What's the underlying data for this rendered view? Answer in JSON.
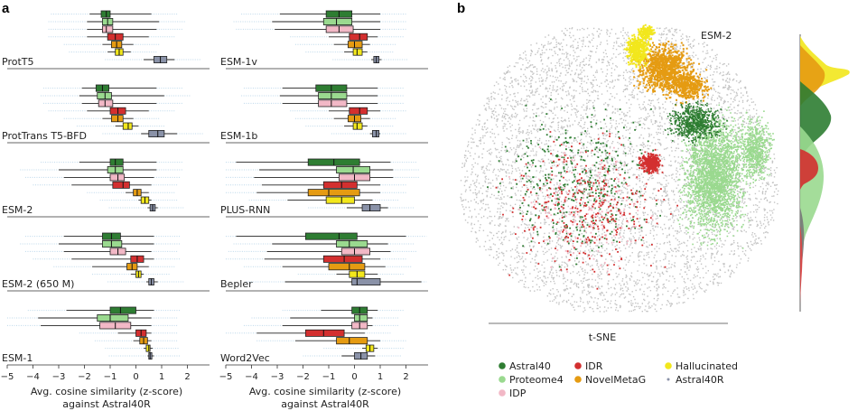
{
  "panel_a_letter": "a",
  "panel_b_letter": "b",
  "colors": {
    "Astral40": "#2e7d32",
    "Proteome4": "#9ad98f",
    "IDP": "#f2b8c6",
    "IDR": "#d32f2f",
    "NovelMetaG": "#e59b12",
    "Hallucinated": "#f2e71c",
    "Astral40R": "#8a92a8",
    "gray_points": "#c4c4c4"
  },
  "chart_data": [
    {
      "type": "box",
      "panel": "a",
      "xlabel_line1": "Avg. cosine similarity (z-score)",
      "xlabel_line2": "against Astral40R",
      "xlim": [
        -5,
        3
      ],
      "xticks": [
        "-5",
        "-4",
        "-3",
        "-2",
        "-1",
        "0",
        "1",
        "2"
      ],
      "series_order": [
        "Astral40",
        "Proteome4",
        "IDP",
        "IDR",
        "NovelMetaG",
        "Hallucinated",
        "Astral40R"
      ],
      "subplots": [
        {
          "name": "ProtT5",
          "boxes": [
            {
              "q1": -1.35,
              "med": -1.15,
              "q3": -1.0,
              "wlo": -1.8,
              "whi": 0.6
            },
            {
              "q1": -1.3,
              "med": -1.1,
              "q3": -0.9,
              "wlo": -1.9,
              "whi": 0.9
            },
            {
              "q1": -1.3,
              "med": -1.15,
              "q3": -0.9,
              "wlo": -1.9,
              "whi": 0.8
            },
            {
              "q1": -1.1,
              "med": -0.8,
              "q3": -0.5,
              "wlo": -1.9,
              "whi": 0.5
            },
            {
              "q1": -0.95,
              "med": -0.75,
              "q3": -0.55,
              "wlo": -1.3,
              "whi": -0.1
            },
            {
              "q1": -0.8,
              "med": -0.65,
              "q3": -0.5,
              "wlo": -1.1,
              "whi": -0.2
            },
            {
              "q1": 0.7,
              "med": 0.95,
              "q3": 1.2,
              "wlo": 0.3,
              "whi": 1.5
            }
          ]
        },
        {
          "name": "ProtTrans T5-BFD",
          "boxes": [
            {
              "q1": -1.55,
              "med": -1.3,
              "q3": -1.05,
              "wlo": -2.1,
              "whi": 0.8
            },
            {
              "q1": -1.5,
              "med": -1.2,
              "q3": -0.95,
              "wlo": -2.2,
              "whi": 1.1
            },
            {
              "q1": -1.45,
              "med": -1.2,
              "q3": -0.9,
              "wlo": -2.1,
              "whi": 0.8
            },
            {
              "q1": -1.0,
              "med": -0.7,
              "q3": -0.4,
              "wlo": -1.9,
              "whi": 0.5
            },
            {
              "q1": -0.95,
              "med": -0.7,
              "q3": -0.5,
              "wlo": -1.3,
              "whi": -0.1
            },
            {
              "q1": -0.5,
              "med": -0.3,
              "q3": -0.15,
              "wlo": -0.8,
              "whi": 0.1
            },
            {
              "q1": 0.5,
              "med": 0.85,
              "q3": 1.1,
              "wlo": 0.2,
              "whi": 1.6
            }
          ]
        },
        {
          "name": "ESM-2",
          "boxes": [
            {
              "q1": -1.0,
              "med": -0.8,
              "q3": -0.5,
              "wlo": -2.2,
              "whi": 0.8
            },
            {
              "q1": -1.1,
              "med": -0.8,
              "q3": -0.5,
              "wlo": -3.0,
              "whi": 0.8
            },
            {
              "q1": -1.0,
              "med": -0.7,
              "q3": -0.45,
              "wlo": -2.8,
              "whi": 0.7
            },
            {
              "q1": -0.9,
              "med": -0.5,
              "q3": -0.25,
              "wlo": -2.5,
              "whi": 0.6
            },
            {
              "q1": -0.1,
              "med": 0.05,
              "q3": 0.2,
              "wlo": -0.4,
              "whi": 0.5
            },
            {
              "q1": 0.2,
              "med": 0.35,
              "q3": 0.5,
              "wlo": 0.1,
              "whi": 0.6
            },
            {
              "q1": 0.55,
              "med": 0.65,
              "q3": 0.75,
              "wlo": 0.45,
              "whi": 0.85
            }
          ]
        },
        {
          "name": "ESM-2 (650 M)",
          "boxes": [
            {
              "q1": -1.3,
              "med": -0.95,
              "q3": -0.6,
              "wlo": -2.8,
              "whi": 0.7
            },
            {
              "q1": -1.3,
              "med": -0.95,
              "q3": -0.55,
              "wlo": -3.0,
              "whi": 0.7
            },
            {
              "q1": -1.0,
              "med": -0.7,
              "q3": -0.4,
              "wlo": -2.8,
              "whi": 0.6
            },
            {
              "q1": -0.2,
              "med": 0.05,
              "q3": 0.3,
              "wlo": -2.5,
              "whi": 0.7
            },
            {
              "q1": -0.35,
              "med": -0.15,
              "q3": 0.05,
              "wlo": -1.7,
              "whi": 0.5
            },
            {
              "q1": 0.0,
              "med": 0.1,
              "q3": 0.2,
              "wlo": -0.2,
              "whi": 0.3
            },
            {
              "q1": 0.5,
              "med": 0.6,
              "q3": 0.7,
              "wlo": 0.4,
              "whi": 0.85
            }
          ]
        },
        {
          "name": "ESM-1",
          "boxes": [
            {
              "q1": -1.0,
              "med": -0.6,
              "q3": 0.0,
              "wlo": -2.7,
              "whi": 0.7
            },
            {
              "q1": -1.5,
              "med": -1.0,
              "q3": -0.3,
              "wlo": -3.8,
              "whi": 0.6
            },
            {
              "q1": -1.4,
              "med": -0.8,
              "q3": -0.2,
              "wlo": -3.7,
              "whi": 0.6
            },
            {
              "q1": 0.0,
              "med": 0.2,
              "q3": 0.4,
              "wlo": -0.7,
              "whi": 0.6
            },
            {
              "q1": 0.15,
              "med": 0.3,
              "q3": 0.45,
              "wlo": -0.1,
              "whi": 0.6
            },
            {
              "q1": 0.4,
              "med": 0.5,
              "q3": 0.55,
              "wlo": 0.3,
              "whi": 0.65
            },
            {
              "q1": 0.5,
              "med": 0.55,
              "q3": 0.62,
              "wlo": 0.45,
              "whi": 0.7
            }
          ]
        },
        {
          "name": "ESM-1v",
          "boxes": [
            {
              "q1": -1.1,
              "med": -0.6,
              "q3": -0.1,
              "wlo": -2.9,
              "whi": 1.0
            },
            {
              "q1": -1.2,
              "med": -0.7,
              "q3": -0.1,
              "wlo": -3.2,
              "whi": 1.0
            },
            {
              "q1": -1.1,
              "med": -0.6,
              "q3": -0.05,
              "wlo": -3.1,
              "whi": 1.0
            },
            {
              "q1": -0.2,
              "med": 0.2,
              "q3": 0.5,
              "wlo": -1.0,
              "whi": 0.9
            },
            {
              "q1": -0.25,
              "med": 0.0,
              "q3": 0.3,
              "wlo": -0.8,
              "whi": 0.6
            },
            {
              "q1": -0.05,
              "med": 0.1,
              "q3": 0.3,
              "wlo": -0.4,
              "whi": 0.5
            },
            {
              "q1": 0.75,
              "med": 0.85,
              "q3": 0.95,
              "wlo": 0.65,
              "whi": 1.05
            }
          ]
        },
        {
          "name": "ESM-1b",
          "boxes": [
            {
              "q1": -1.5,
              "med": -0.9,
              "q3": -0.3,
              "wlo": -2.8,
              "whi": 0.9
            },
            {
              "q1": -1.4,
              "med": -0.9,
              "q3": -0.3,
              "wlo": -2.9,
              "whi": 0.9
            },
            {
              "q1": -1.4,
              "med": -0.9,
              "q3": -0.3,
              "wlo": -2.8,
              "whi": 0.9
            },
            {
              "q1": -0.2,
              "med": 0.2,
              "q3": 0.5,
              "wlo": -1.0,
              "whi": 1.0
            },
            {
              "q1": -0.25,
              "med": 0.0,
              "q3": 0.25,
              "wlo": -0.8,
              "whi": 0.6
            },
            {
              "q1": -0.05,
              "med": 0.1,
              "q3": 0.3,
              "wlo": -0.4,
              "whi": 0.5
            },
            {
              "q1": 0.7,
              "med": 0.85,
              "q3": 0.95,
              "wlo": 0.6,
              "whi": 1.0
            }
          ]
        },
        {
          "name": "PLUS-RNN",
          "boxes": [
            {
              "q1": -1.8,
              "med": -0.8,
              "q3": 0.2,
              "wlo": -4.6,
              "whi": 1.4
            },
            {
              "q1": -0.7,
              "med": -0.05,
              "q3": 0.6,
              "wlo": -3.7,
              "whi": 1.5
            },
            {
              "q1": -0.6,
              "med": 0.0,
              "q3": 0.6,
              "wlo": -3.9,
              "whi": 1.5
            },
            {
              "q1": -1.2,
              "med": -0.5,
              "q3": 0.1,
              "wlo": -3.6,
              "whi": 1.0
            },
            {
              "q1": -1.8,
              "med": -1.0,
              "q3": 0.2,
              "wlo": -3.8,
              "whi": 1.0
            },
            {
              "q1": -1.1,
              "med": -0.5,
              "q3": 0.0,
              "wlo": -2.6,
              "whi": 0.7
            },
            {
              "q1": 0.3,
              "med": 0.6,
              "q3": 1.0,
              "wlo": -0.3,
              "whi": 1.3
            }
          ]
        },
        {
          "name": "Bepler",
          "boxes": [
            {
              "q1": -1.9,
              "med": -0.6,
              "q3": 0.1,
              "wlo": -4.6,
              "whi": 2.0
            },
            {
              "q1": -0.7,
              "med": -0.2,
              "q3": 0.5,
              "wlo": -3.2,
              "whi": 1.3
            },
            {
              "q1": -0.5,
              "med": 0.0,
              "q3": 0.6,
              "wlo": -3.4,
              "whi": 1.4
            },
            {
              "q1": -1.2,
              "med": -0.4,
              "q3": 0.3,
              "wlo": -3.5,
              "whi": 1.0
            },
            {
              "q1": -1.0,
              "med": -0.2,
              "q3": 0.4,
              "wlo": -2.8,
              "whi": 1.2
            },
            {
              "q1": -0.2,
              "med": 0.1,
              "q3": 0.4,
              "wlo": -0.7,
              "whi": 0.9
            },
            {
              "q1": -0.1,
              "med": 0.1,
              "q3": 1.0,
              "wlo": -2.7,
              "whi": 2.6
            }
          ]
        },
        {
          "name": "Word2Vec",
          "boxes": [
            {
              "q1": -0.1,
              "med": 0.2,
              "q3": 0.5,
              "wlo": -1.3,
              "whi": 0.9
            },
            {
              "q1": 0.0,
              "med": 0.2,
              "q3": 0.5,
              "wlo": -2.5,
              "whi": 0.7
            },
            {
              "q1": -0.1,
              "med": 0.2,
              "q3": 0.5,
              "wlo": -2.8,
              "whi": 0.7
            },
            {
              "q1": -1.9,
              "med": -1.2,
              "q3": -0.4,
              "wlo": -3.8,
              "whi": 0.4
            },
            {
              "q1": -0.7,
              "med": -0.2,
              "q3": 0.5,
              "wlo": -2.3,
              "whi": 1.0
            },
            {
              "q1": 0.45,
              "med": 0.6,
              "q3": 0.75,
              "wlo": 0.3,
              "whi": 0.9
            },
            {
              "q1": 0.0,
              "med": 0.25,
              "q3": 0.5,
              "wlo": -0.5,
              "whi": 0.8
            }
          ]
        }
      ]
    },
    {
      "type": "scatter",
      "panel": "b",
      "title": "ESM-2",
      "xlabel": "t-SNE",
      "legend": [
        {
          "label": "Astral40",
          "key": "Astral40"
        },
        {
          "label": "IDR",
          "key": "IDR"
        },
        {
          "label": "Hallucinated",
          "key": "Hallucinated"
        },
        {
          "label": "Proteome4",
          "key": "Proteome4"
        },
        {
          "label": "NovelMetaG",
          "key": "NovelMetaG"
        },
        {
          "label": "Astral40R",
          "key": "Astral40R"
        },
        {
          "label": "IDP",
          "key": "IDP"
        }
      ],
      "density_panel": true
    }
  ]
}
